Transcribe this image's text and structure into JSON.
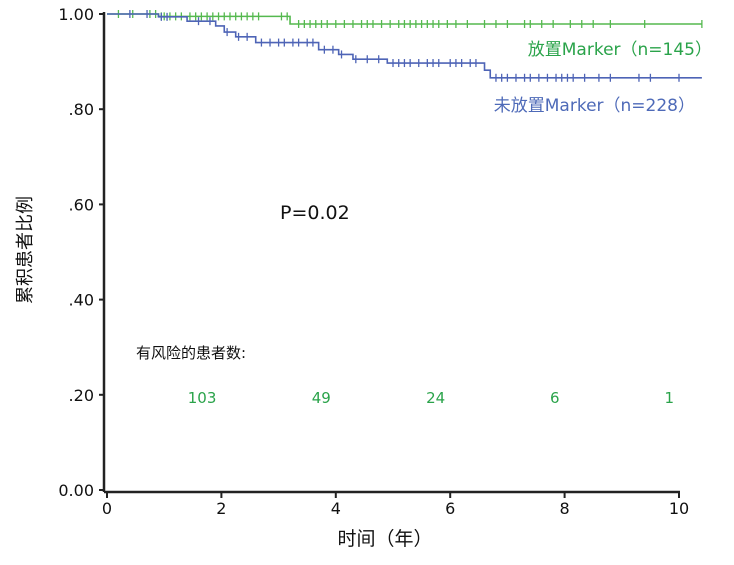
{
  "chart_data": {
    "type": "line",
    "subtype": "kaplan-meier",
    "xlabel": "时间（年）",
    "ylabel": "累积患者比例",
    "xlim": [
      0,
      10
    ],
    "ylim": [
      0,
      1
    ],
    "x_ticks": [
      "0",
      "2",
      "4",
      "6",
      "8",
      "10"
    ],
    "x_tick_values": [
      0,
      2,
      4,
      6,
      8,
      10
    ],
    "y_ticks": [
      "0.00",
      ".20",
      ".40",
      ".60",
      ".80",
      "1.00"
    ],
    "y_tick_values": [
      0,
      0.2,
      0.4,
      0.6,
      0.8,
      1.0
    ],
    "annotation": "P=0.02",
    "risk_title": "有风险的患者数:",
    "risk_times": [
      2,
      4,
      6,
      8,
      10
    ],
    "series": [
      {
        "name": "放置Marker（n=145）",
        "color": "#55b94f",
        "label_color": "#2aa34a",
        "steps": [
          [
            0,
            1.0
          ],
          [
            0.9,
            0.995
          ],
          [
            3.2,
            0.979
          ],
          [
            10.4,
            0.979
          ]
        ],
        "censored": [
          0.2,
          0.45,
          0.75,
          0.85,
          0.95,
          1.0,
          1.1,
          1.2,
          1.3,
          1.45,
          1.55,
          1.65,
          1.75,
          1.85,
          1.95,
          2.05,
          2.15,
          2.25,
          2.35,
          2.45,
          2.55,
          2.65,
          3.05,
          3.15,
          3.35,
          3.45,
          3.55,
          3.65,
          3.75,
          3.85,
          4.0,
          4.15,
          4.3,
          4.45,
          4.55,
          4.65,
          4.8,
          4.95,
          5.1,
          5.2,
          5.3,
          5.4,
          5.5,
          5.6,
          5.7,
          5.8,
          5.95,
          6.1,
          6.3,
          6.6,
          6.8,
          7.0,
          7.3,
          7.4,
          7.6,
          7.8,
          8.1,
          8.3,
          8.5,
          8.8,
          9.4,
          10.4
        ],
        "at_risk": [
          103,
          49,
          24,
          6,
          1
        ]
      },
      {
        "name": "未放置Marker（n=228）",
        "color": "#4e64b6",
        "label_color": "#4e6ab8",
        "steps": [
          [
            0,
            1.0
          ],
          [
            0.9,
            0.994
          ],
          [
            1.4,
            0.985
          ],
          [
            1.9,
            0.975
          ],
          [
            2.05,
            0.962
          ],
          [
            2.25,
            0.952
          ],
          [
            2.6,
            0.94
          ],
          [
            3.7,
            0.925
          ],
          [
            4.05,
            0.915
          ],
          [
            4.3,
            0.905
          ],
          [
            4.9,
            0.897
          ],
          [
            6.6,
            0.882
          ],
          [
            6.7,
            0.866
          ],
          [
            10.4,
            0.866
          ]
        ],
        "censored": [
          0.4,
          0.7,
          0.95,
          1.05,
          1.6,
          1.8,
          2.1,
          2.3,
          2.45,
          2.7,
          2.85,
          3.0,
          3.1,
          3.25,
          3.35,
          3.5,
          3.6,
          3.8,
          3.95,
          4.1,
          4.35,
          4.55,
          4.75,
          5.0,
          5.1,
          5.2,
          5.3,
          5.45,
          5.6,
          5.7,
          5.8,
          6.0,
          6.1,
          6.2,
          6.35,
          6.45,
          6.8,
          6.9,
          7.0,
          7.15,
          7.3,
          7.4,
          7.55,
          7.7,
          7.85,
          7.95,
          8.05,
          8.15,
          8.35,
          8.6,
          8.8,
          9.3,
          9.5,
          10.0
        ]
      }
    ]
  }
}
